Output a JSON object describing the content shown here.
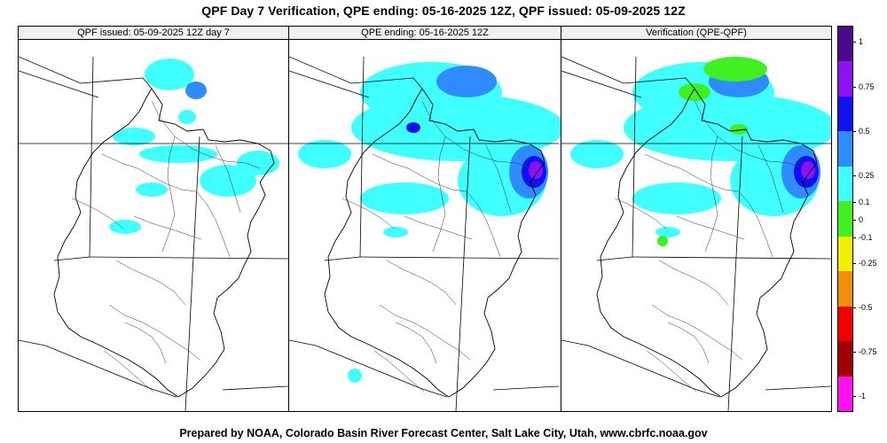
{
  "title": "QPF Day 7 Verification, QPE ending: 05-16-2025 12Z, QPF issued: 05-09-2025 12Z",
  "footer": "Prepared by NOAA, Colorado Basin River Forecast Center, Salt Lake City, Utah, www.cbrfc.noaa.gov",
  "panels": [
    {
      "label": "QPF issued: 05-09-2025 12Z day 7"
    },
    {
      "label": "QPE ending: 05-16-2025 12Z"
    },
    {
      "label": "Verification (QPE-QPF)"
    }
  ],
  "colorbar": {
    "labels": [
      "1",
      "0.75",
      "0.5",
      "0.25",
      "0.1",
      "0",
      "-0.1",
      "-0.25",
      "-0.5",
      "-0.75",
      "-1"
    ],
    "colors": [
      "#4b0a8c",
      "#8c12f0",
      "#1010f0",
      "#2e8cff",
      "#40ffff",
      "#40f020",
      "#f0f000",
      "#f0900a",
      "#f00000",
      "#a00000",
      "#ff10f0"
    ]
  },
  "colors": {
    "cyan": "#40ffff",
    "blue": "#2e8cff",
    "dark_blue": "#1010f0",
    "purple": "#8c12f0",
    "green": "#40f020"
  }
}
